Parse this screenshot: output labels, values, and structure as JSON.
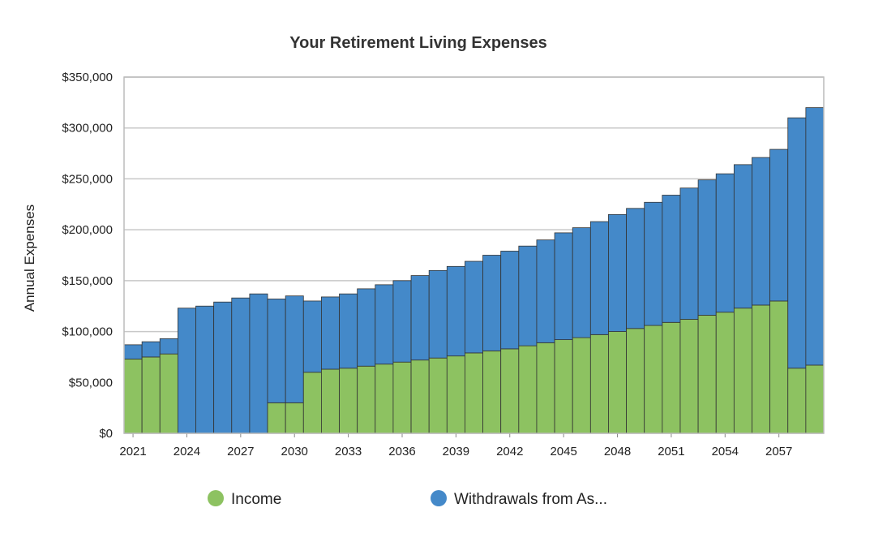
{
  "chart_data": {
    "type": "bar",
    "stacked": true,
    "title": "Your Retirement Living Expenses",
    "xlabel": "",
    "ylabel": "Annual Expenses",
    "ylim": [
      0,
      350000
    ],
    "ytick_labels": [
      "$0",
      "$50,000",
      "$100,000",
      "$150,000",
      "$200,000",
      "$250,000",
      "$300,000",
      "$350,000"
    ],
    "ytick_values": [
      0,
      50000,
      100000,
      150000,
      200000,
      250000,
      300000,
      350000
    ],
    "xtick_labels": [
      "2021",
      "2024",
      "2027",
      "2030",
      "2033",
      "2036",
      "2039",
      "2042",
      "2045",
      "2048",
      "2051",
      "2054",
      "2057"
    ],
    "categories": [
      2021,
      2022,
      2023,
      2024,
      2025,
      2026,
      2027,
      2028,
      2029,
      2030,
      2031,
      2032,
      2033,
      2034,
      2035,
      2036,
      2037,
      2038,
      2039,
      2040,
      2041,
      2042,
      2043,
      2044,
      2045,
      2046,
      2047,
      2048,
      2049,
      2050,
      2051,
      2052,
      2053,
      2054,
      2055,
      2056,
      2057,
      2058,
      2059
    ],
    "grid": true,
    "legend_position": "bottom",
    "series": [
      {
        "name": "Income",
        "color": "#8dc261",
        "values": [
          73000,
          75000,
          78000,
          0,
          0,
          0,
          0,
          0,
          30000,
          30000,
          60000,
          63000,
          64000,
          66000,
          68000,
          70000,
          72000,
          74000,
          76000,
          79000,
          81000,
          83000,
          86000,
          89000,
          92000,
          94000,
          97000,
          100000,
          103000,
          106000,
          109000,
          112000,
          116000,
          119000,
          123000,
          126000,
          130000,
          64000,
          67000
        ]
      },
      {
        "name": "Withdrawals from As...",
        "color": "#4489c9",
        "values": [
          14000,
          15000,
          15000,
          123000,
          125000,
          129000,
          133000,
          137000,
          102000,
          105000,
          70000,
          71000,
          73000,
          76000,
          78000,
          80000,
          83000,
          86000,
          88000,
          90000,
          94000,
          96000,
          98000,
          101000,
          105000,
          108000,
          111000,
          115000,
          118000,
          121000,
          125000,
          129000,
          133000,
          136000,
          141000,
          145000,
          149000,
          246000,
          253000
        ]
      }
    ]
  },
  "colors": {
    "grid": "#c8c8c8",
    "bar_stroke": "#333333",
    "frame": "#bbbbbb"
  }
}
